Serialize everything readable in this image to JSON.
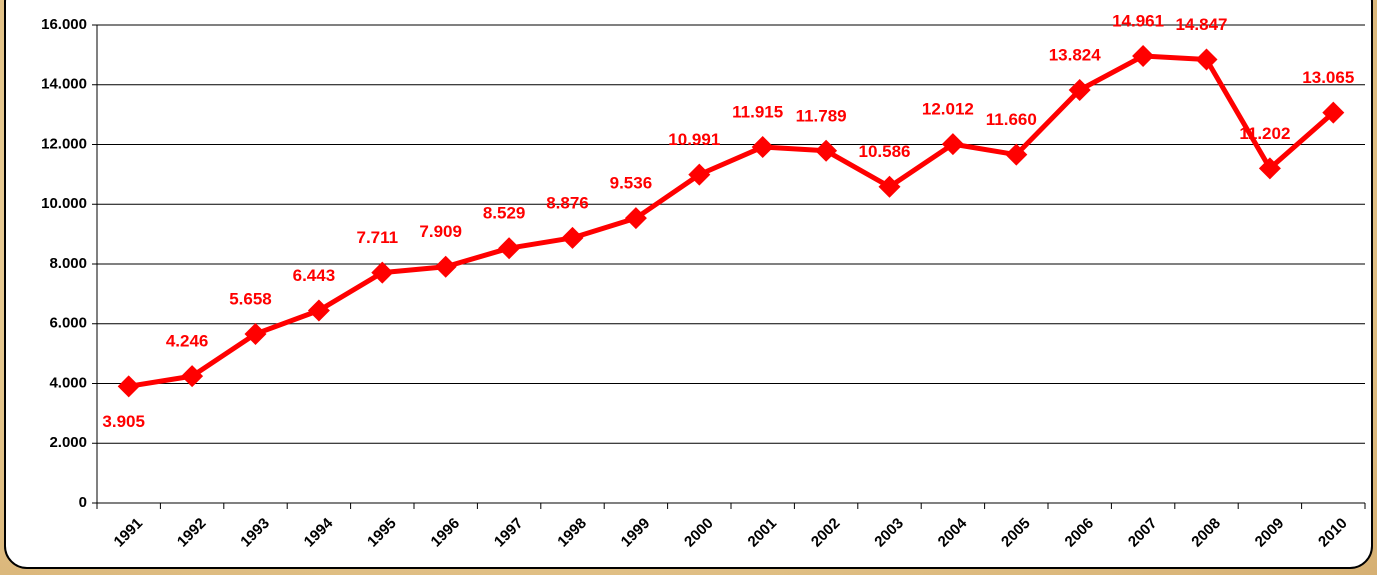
{
  "chart_data": {
    "type": "line",
    "categories": [
      "1991",
      "1992",
      "1993",
      "1994",
      "1995",
      "1996",
      "1997",
      "1998",
      "1999",
      "2000",
      "2001",
      "2002",
      "2003",
      "2004",
      "2005",
      "2006",
      "2007",
      "2008",
      "2009",
      "2010"
    ],
    "series": [
      {
        "color": "#ff0000",
        "values": [
          3905,
          4246,
          5658,
          6443,
          7711,
          7909,
          8529,
          8876,
          9536,
          10991,
          11915,
          11789,
          10586,
          12012,
          11660,
          13824,
          14961,
          14847,
          11202,
          13065
        ],
        "value_labels": [
          "3.905",
          "4.246",
          "5.658",
          "6.443",
          "7.711",
          "7.909",
          "8.529",
          "8.876",
          "9.536",
          "10.991",
          "11.915",
          "11.789",
          "10.586",
          "12.012",
          "11.660",
          "13.824",
          "14.961",
          "14.847",
          "11.202",
          "13.065"
        ]
      }
    ],
    "ylim": [
      0,
      16000
    ],
    "yticks": [
      0,
      {
        "value": 2000,
        "label": "2.000"
      },
      {
        "value": 4000,
        "label": "4.000"
      },
      {
        "value": 6000,
        "label": "6.000"
      },
      {
        "value": 8000,
        "label": "8.000"
      },
      {
        "value": 10000,
        "label": "10.000"
      },
      {
        "value": 12000,
        "label": "12.000"
      },
      {
        "value": 14000,
        "label": "14.000"
      },
      {
        "value": 16000,
        "label": "16.000"
      }
    ],
    "grid": true
  }
}
